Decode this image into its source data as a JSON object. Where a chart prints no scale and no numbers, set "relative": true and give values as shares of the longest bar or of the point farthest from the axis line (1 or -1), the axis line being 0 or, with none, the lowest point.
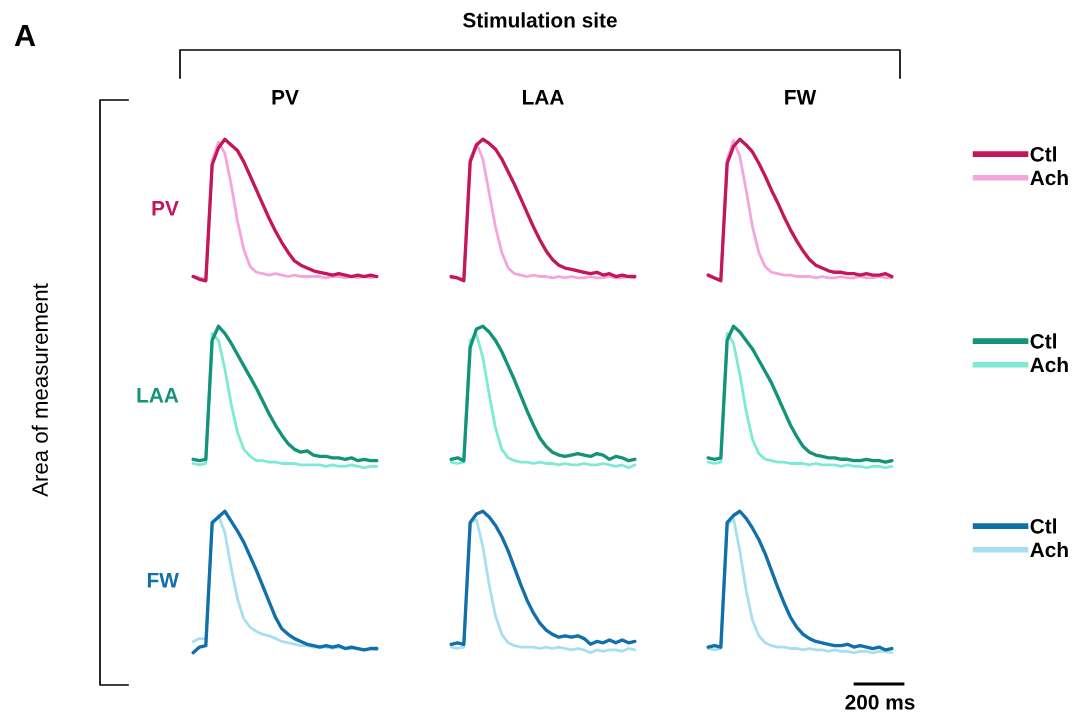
{
  "chart_data": [
    {
      "type": "line",
      "relative": true,
      "title": "PV",
      "ylabel": "PV",
      "categories": [
        null,
        null,
        null,
        null,
        null,
        null,
        null,
        null,
        null,
        null,
        null,
        null,
        null,
        null,
        null,
        null,
        null,
        null,
        null,
        null,
        null,
        null,
        null,
        null,
        null,
        null,
        null,
        null,
        null,
        null
      ],
      "annotations": [
        "A",
        "Stimulation site",
        "Area of measurement",
        "200 ms"
      ],
      "series": [
        {
          "color": "#c2185b",
          "values": [
            0.03,
            0.01,
            0.0,
            0.82,
            0.94,
            1.0,
            0.96,
            0.92,
            0.84,
            0.74,
            0.64,
            0.54,
            0.44,
            0.35,
            0.27,
            0.2,
            0.14,
            0.11,
            0.09,
            0.07,
            0.06,
            0.05,
            0.04,
            0.05,
            0.04,
            0.03,
            0.04,
            0.03,
            0.04,
            0.03
          ]
        },
        {
          "color": "#f4a6dc",
          "values": [
            0.03,
            0.02,
            0.01,
            0.85,
            0.98,
            0.9,
            0.68,
            0.42,
            0.22,
            0.1,
            0.06,
            0.05,
            0.04,
            0.05,
            0.04,
            0.03,
            0.04,
            0.03,
            0.03,
            0.03,
            0.03,
            0.02,
            0.03,
            0.03,
            0.02,
            0.03,
            0.02,
            0.03,
            0.02,
            0.03
          ]
        }
      ]
    },
    {
      "type": "line",
      "relative": true,
      "title": "LAA",
      "categories": [
        null,
        null,
        null,
        null,
        null,
        null,
        null,
        null,
        null,
        null,
        null,
        null,
        null,
        null,
        null,
        null,
        null,
        null,
        null,
        null,
        null,
        null,
        null,
        null,
        null,
        null,
        null,
        null,
        null,
        null
      ],
      "series": [
        {
          "color": "#c2185b",
          "values": [
            0.03,
            0.02,
            0.0,
            0.84,
            0.96,
            1.0,
            0.97,
            0.93,
            0.86,
            0.77,
            0.68,
            0.58,
            0.48,
            0.38,
            0.29,
            0.21,
            0.15,
            0.11,
            0.09,
            0.08,
            0.07,
            0.06,
            0.05,
            0.06,
            0.04,
            0.05,
            0.03,
            0.04,
            0.03,
            0.03
          ]
        },
        {
          "color": "#f4a6dc",
          "values": [
            0.02,
            0.02,
            0.01,
            0.86,
            0.97,
            0.86,
            0.62,
            0.38,
            0.2,
            0.09,
            0.05,
            0.04,
            0.03,
            0.04,
            0.03,
            0.03,
            0.02,
            0.03,
            0.02,
            0.03,
            0.02,
            0.02,
            0.03,
            0.02,
            0.02,
            0.03,
            0.02,
            0.02,
            0.03,
            0.02
          ]
        }
      ]
    },
    {
      "type": "line",
      "relative": true,
      "title": "FW",
      "categories": [
        null,
        null,
        null,
        null,
        null,
        null,
        null,
        null,
        null,
        null,
        null,
        null,
        null,
        null,
        null,
        null,
        null,
        null,
        null,
        null,
        null,
        null,
        null,
        null,
        null,
        null,
        null,
        null,
        null,
        null
      ],
      "legend": "right",
      "series": [
        {
          "name": "Ctl",
          "color": "#c2185b",
          "values": [
            0.04,
            0.02,
            0.0,
            0.83,
            0.95,
            1.0,
            0.96,
            0.91,
            0.83,
            0.74,
            0.64,
            0.55,
            0.45,
            0.36,
            0.28,
            0.21,
            0.15,
            0.11,
            0.09,
            0.07,
            0.06,
            0.06,
            0.05,
            0.05,
            0.04,
            0.05,
            0.04,
            0.04,
            0.05,
            0.03
          ]
        },
        {
          "name": "Ach",
          "color": "#f4a6dc",
          "values": [
            0.03,
            0.02,
            0.01,
            0.86,
            0.99,
            0.88,
            0.64,
            0.38,
            0.2,
            0.1,
            0.06,
            0.05,
            0.04,
            0.04,
            0.03,
            0.03,
            0.03,
            0.02,
            0.03,
            0.02,
            0.02,
            0.03,
            0.02,
            0.02,
            0.03,
            0.02,
            0.02,
            0.03,
            0.02,
            0.02
          ]
        }
      ]
    },
    {
      "type": "line",
      "relative": true,
      "ylabel": "LAA",
      "categories": [
        null,
        null,
        null,
        null,
        null,
        null,
        null,
        null,
        null,
        null,
        null,
        null,
        null,
        null,
        null,
        null,
        null,
        null,
        null,
        null,
        null,
        null,
        null,
        null,
        null,
        null,
        null,
        null,
        null,
        null
      ],
      "series": [
        {
          "color": "#13937a",
          "values": [
            0.06,
            0.05,
            0.06,
            0.9,
            1.0,
            0.95,
            0.88,
            0.8,
            0.72,
            0.64,
            0.56,
            0.47,
            0.38,
            0.3,
            0.23,
            0.17,
            0.13,
            0.11,
            0.12,
            0.09,
            0.08,
            0.08,
            0.07,
            0.07,
            0.06,
            0.07,
            0.05,
            0.06,
            0.05,
            0.05
          ]
        },
        {
          "color": "#7eead3",
          "values": [
            0.03,
            0.02,
            0.03,
            0.95,
            0.9,
            0.7,
            0.45,
            0.25,
            0.13,
            0.08,
            0.05,
            0.05,
            0.04,
            0.04,
            0.03,
            0.03,
            0.03,
            0.02,
            0.02,
            0.02,
            0.02,
            0.01,
            0.02,
            0.01,
            0.01,
            0.02,
            0.01,
            0.0,
            0.01,
            0.01
          ]
        }
      ]
    },
    {
      "type": "line",
      "relative": true,
      "categories": [
        null,
        null,
        null,
        null,
        null,
        null,
        null,
        null,
        null,
        null,
        null,
        null,
        null,
        null,
        null,
        null,
        null,
        null,
        null,
        null,
        null,
        null,
        null,
        null,
        null,
        null,
        null,
        null,
        null,
        null
      ],
      "series": [
        {
          "color": "#13937a",
          "values": [
            0.06,
            0.07,
            0.05,
            0.85,
            0.98,
            1.0,
            0.96,
            0.9,
            0.82,
            0.72,
            0.62,
            0.51,
            0.4,
            0.3,
            0.21,
            0.15,
            0.11,
            0.09,
            0.08,
            0.09,
            0.1,
            0.09,
            0.08,
            0.1,
            0.09,
            0.06,
            0.08,
            0.07,
            0.05,
            0.06
          ]
        },
        {
          "color": "#7eead3",
          "values": [
            0.04,
            0.03,
            0.04,
            0.9,
            0.94,
            0.78,
            0.52,
            0.28,
            0.13,
            0.07,
            0.05,
            0.04,
            0.04,
            0.03,
            0.04,
            0.03,
            0.03,
            0.02,
            0.03,
            0.02,
            0.02,
            0.03,
            0.02,
            0.02,
            0.03,
            0.02,
            0.01,
            0.02,
            0.0,
            0.02
          ]
        }
      ]
    },
    {
      "type": "line",
      "relative": true,
      "categories": [
        null,
        null,
        null,
        null,
        null,
        null,
        null,
        null,
        null,
        null,
        null,
        null,
        null,
        null,
        null,
        null,
        null,
        null,
        null,
        null,
        null,
        null,
        null,
        null,
        null,
        null,
        null,
        null,
        null,
        null
      ],
      "legend": "right",
      "series": [
        {
          "name": "Ctl",
          "color": "#13937a",
          "values": [
            0.07,
            0.06,
            0.07,
            0.9,
            1.0,
            0.96,
            0.9,
            0.84,
            0.76,
            0.68,
            0.6,
            0.5,
            0.4,
            0.3,
            0.22,
            0.15,
            0.11,
            0.09,
            0.08,
            0.07,
            0.07,
            0.06,
            0.06,
            0.05,
            0.05,
            0.06,
            0.05,
            0.05,
            0.04,
            0.05
          ]
        },
        {
          "name": "Ach",
          "color": "#7eead3",
          "values": [
            0.04,
            0.03,
            0.04,
            0.95,
            0.88,
            0.66,
            0.4,
            0.2,
            0.1,
            0.06,
            0.05,
            0.04,
            0.04,
            0.03,
            0.03,
            0.03,
            0.02,
            0.03,
            0.02,
            0.02,
            0.02,
            0.01,
            0.02,
            0.01,
            0.01,
            0.0,
            0.01,
            0.01,
            0.0,
            0.01
          ]
        }
      ]
    },
    {
      "type": "line",
      "relative": true,
      "ylabel": "FW",
      "categories": [
        null,
        null,
        null,
        null,
        null,
        null,
        null,
        null,
        null,
        null,
        null,
        null,
        null,
        null,
        null,
        null,
        null,
        null,
        null,
        null,
        null,
        null,
        null,
        null,
        null,
        null,
        null,
        null,
        null,
        null
      ],
      "series": [
        {
          "color": "#1170aa",
          "values": [
            0.0,
            0.04,
            0.05,
            0.92,
            0.96,
            1.0,
            0.93,
            0.86,
            0.78,
            0.68,
            0.58,
            0.47,
            0.36,
            0.25,
            0.17,
            0.13,
            0.1,
            0.08,
            0.06,
            0.05,
            0.04,
            0.05,
            0.04,
            0.05,
            0.03,
            0.04,
            0.03,
            0.02,
            0.03,
            0.03
          ]
        },
        {
          "color": "#a8dff0",
          "values": [
            0.08,
            0.1,
            0.1,
            0.9,
            0.97,
            0.85,
            0.6,
            0.38,
            0.24,
            0.18,
            0.15,
            0.13,
            0.12,
            0.1,
            0.08,
            0.07,
            0.06,
            0.05,
            0.05,
            0.04,
            0.04,
            0.04,
            0.03,
            0.04,
            0.03,
            0.03,
            0.03,
            0.02,
            0.03,
            0.02
          ]
        }
      ]
    },
    {
      "type": "line",
      "relative": true,
      "categories": [
        null,
        null,
        null,
        null,
        null,
        null,
        null,
        null,
        null,
        null,
        null,
        null,
        null,
        null,
        null,
        null,
        null,
        null,
        null,
        null,
        null,
        null,
        null,
        null,
        null,
        null,
        null,
        null,
        null,
        null
      ],
      "series": [
        {
          "color": "#1170aa",
          "values": [
            0.06,
            0.07,
            0.06,
            0.92,
            0.98,
            1.0,
            0.96,
            0.9,
            0.82,
            0.72,
            0.6,
            0.48,
            0.37,
            0.28,
            0.21,
            0.16,
            0.13,
            0.11,
            0.12,
            0.11,
            0.12,
            0.1,
            0.06,
            0.08,
            0.07,
            0.09,
            0.07,
            0.09,
            0.07,
            0.08
          ]
        },
        {
          "color": "#a8dff0",
          "values": [
            0.04,
            0.03,
            0.04,
            0.92,
            0.94,
            0.75,
            0.48,
            0.26,
            0.13,
            0.07,
            0.05,
            0.04,
            0.04,
            0.04,
            0.03,
            0.04,
            0.03,
            0.04,
            0.03,
            0.02,
            0.03,
            0.02,
            0.0,
            0.02,
            0.01,
            0.02,
            0.02,
            0.01,
            0.03,
            0.02
          ]
        }
      ]
    },
    {
      "type": "line",
      "relative": true,
      "categories": [
        null,
        null,
        null,
        null,
        null,
        null,
        null,
        null,
        null,
        null,
        null,
        null,
        null,
        null,
        null,
        null,
        null,
        null,
        null,
        null,
        null,
        null,
        null,
        null,
        null,
        null,
        null,
        null,
        null,
        null
      ],
      "legend": "right",
      "series": [
        {
          "name": "Ctl",
          "color": "#1170aa",
          "values": [
            0.04,
            0.05,
            0.04,
            0.92,
            0.97,
            1.0,
            0.95,
            0.88,
            0.8,
            0.7,
            0.58,
            0.46,
            0.35,
            0.25,
            0.18,
            0.13,
            0.1,
            0.08,
            0.07,
            0.06,
            0.05,
            0.05,
            0.06,
            0.04,
            0.05,
            0.04,
            0.03,
            0.04,
            0.02,
            0.03
          ]
        },
        {
          "name": "Ach",
          "color": "#a8dff0",
          "values": [
            0.03,
            0.02,
            0.03,
            0.9,
            0.95,
            0.72,
            0.44,
            0.23,
            0.12,
            0.07,
            0.05,
            0.04,
            0.04,
            0.03,
            0.03,
            0.02,
            0.03,
            0.02,
            0.02,
            0.01,
            0.02,
            0.01,
            0.01,
            0.0,
            0.01,
            0.01,
            0.0,
            0.01,
            0.01,
            0.0
          ]
        }
      ]
    }
  ]
}
